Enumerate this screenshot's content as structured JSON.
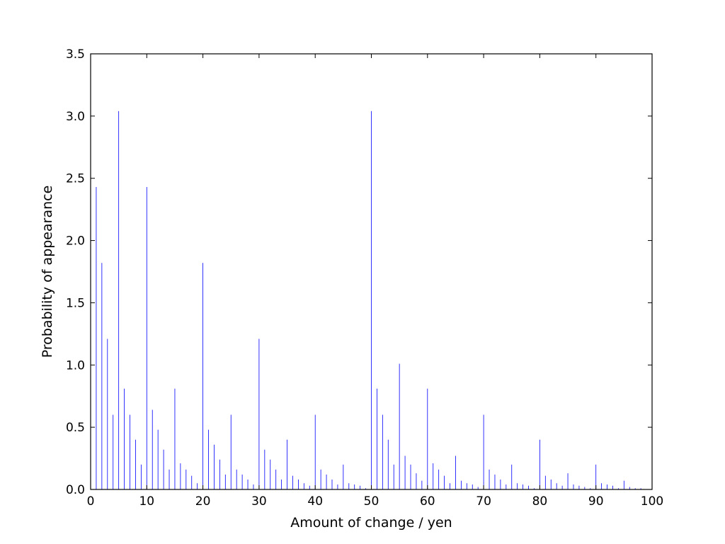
{
  "chart_data": {
    "type": "bar",
    "xlabel": "Amount of change / yen",
    "ylabel": "Probability of appearance",
    "xlim": [
      0,
      100
    ],
    "ylim": [
      0,
      3.5
    ],
    "xticks": [
      "0",
      "10",
      "20",
      "30",
      "40",
      "50",
      "60",
      "70",
      "80",
      "90",
      "100"
    ],
    "yticks": [
      "0.0",
      "0.5",
      "1.0",
      "1.5",
      "2.0",
      "2.5",
      "3.0",
      "3.5"
    ],
    "grid": false,
    "bar_color": "#0000ff",
    "x": [
      1,
      2,
      3,
      4,
      5,
      6,
      7,
      8,
      9,
      10,
      11,
      12,
      13,
      14,
      15,
      16,
      17,
      18,
      19,
      20,
      21,
      22,
      23,
      24,
      25,
      26,
      27,
      28,
      29,
      30,
      31,
      32,
      33,
      34,
      35,
      36,
      37,
      38,
      39,
      40,
      41,
      42,
      43,
      44,
      45,
      46,
      47,
      48,
      49,
      50,
      51,
      52,
      53,
      54,
      55,
      56,
      57,
      58,
      59,
      60,
      61,
      62,
      63,
      64,
      65,
      66,
      67,
      68,
      69,
      70,
      71,
      72,
      73,
      74,
      75,
      76,
      77,
      78,
      79,
      80,
      81,
      82,
      83,
      84,
      85,
      86,
      87,
      88,
      89,
      90,
      91,
      92,
      93,
      94,
      95,
      96,
      97,
      98,
      99
    ],
    "values": [
      2.43,
      1.82,
      1.21,
      0.6,
      3.04,
      0.81,
      0.6,
      0.4,
      0.2,
      2.43,
      0.64,
      0.48,
      0.32,
      0.16,
      0.81,
      0.21,
      0.16,
      0.11,
      0.05,
      1.82,
      0.48,
      0.36,
      0.24,
      0.12,
      0.6,
      0.16,
      0.12,
      0.08,
      0.04,
      1.21,
      0.32,
      0.24,
      0.16,
      0.08,
      0.4,
      0.11,
      0.08,
      0.05,
      0.03,
      0.6,
      0.16,
      0.12,
      0.08,
      0.04,
      0.2,
      0.05,
      0.04,
      0.03,
      0.01,
      3.04,
      0.81,
      0.6,
      0.4,
      0.2,
      1.01,
      0.27,
      0.2,
      0.13,
      0.07,
      0.81,
      0.21,
      0.16,
      0.11,
      0.05,
      0.27,
      0.07,
      0.05,
      0.04,
      0.02,
      0.6,
      0.16,
      0.12,
      0.08,
      0.04,
      0.2,
      0.05,
      0.04,
      0.03,
      0.01,
      0.4,
      0.11,
      0.08,
      0.05,
      0.03,
      0.13,
      0.04,
      0.03,
      0.02,
      0.01,
      0.2,
      0.05,
      0.04,
      0.03,
      0.01,
      0.07,
      0.02,
      0.01,
      0.01,
      0.0
    ]
  }
}
